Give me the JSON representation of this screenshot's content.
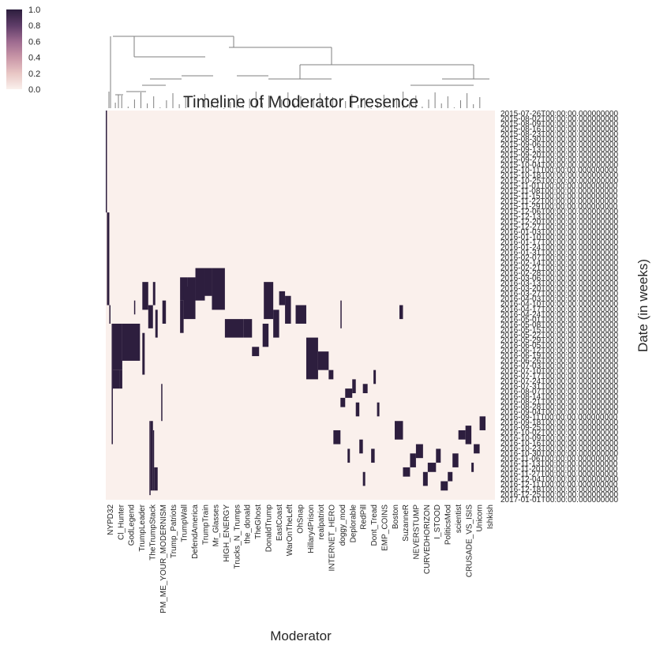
{
  "chart_data": {
    "type": "heatmap",
    "title": "Timeline of Moderator Presence",
    "xlabel": "Moderator",
    "ylabel": "Date (in weeks)",
    "colorbar": {
      "ticks": [
        "0.0",
        "0.2",
        "0.4",
        "0.6",
        "0.8",
        "1.0"
      ],
      "range": [
        0,
        1
      ]
    },
    "colors": {
      "low": "#faf0ec",
      "high": "#2d1e3e",
      "line": "#7f7f7f"
    },
    "dendrogram": "top",
    "legend_position": "top-left",
    "y_ticks": [
      "2015-07-26T00:00:00.000000000",
      "2015-08-02T00:00:00.000000000",
      "2015-08-09T00:00:00.000000000",
      "2015-08-16T00:00:00.000000000",
      "2015-08-23T00:00:00.000000000",
      "2015-08-30T00:00:00.000000000",
      "2015-09-06T00:00:00.000000000",
      "2015-09-13T00:00:00.000000000",
      "2015-09-20T00:00:00.000000000",
      "2015-09-27T00:00:00.000000000",
      "2015-10-04T00:00:00.000000000",
      "2015-10-11T00:00:00.000000000",
      "2015-10-18T00:00:00.000000000",
      "2015-10-25T00:00:00.000000000",
      "2015-11-01T00:00:00.000000000",
      "2015-11-08T00:00:00.000000000",
      "2015-11-15T00:00:00.000000000",
      "2015-11-22T00:00:00.000000000",
      "2015-11-29T00:00:00.000000000",
      "2015-12-06T00:00:00.000000000",
      "2015-12-13T00:00:00.000000000",
      "2015-12-20T00:00:00.000000000",
      "2015-12-27T00:00:00.000000000",
      "2016-01-03T00:00:00.000000000",
      "2016-01-10T00:00:00.000000000",
      "2016-01-17T00:00:00.000000000",
      "2016-01-24T00:00:00.000000000",
      "2016-01-31T00:00:00.000000000",
      "2016-02-07T00:00:00.000000000",
      "2016-02-14T00:00:00.000000000",
      "2016-02-21T00:00:00.000000000",
      "2016-02-28T00:00:00.000000000",
      "2016-03-06T00:00:00.000000000",
      "2016-03-13T00:00:00.000000000",
      "2016-03-20T00:00:00.000000000",
      "2016-03-27T00:00:00.000000000",
      "2016-04-03T00:00:00.000000000",
      "2016-04-10T00:00:00.000000000",
      "2016-04-17T00:00:00.000000000",
      "2016-04-24T00:00:00.000000000",
      "2016-05-01T00:00:00.000000000",
      "2016-05-08T00:00:00.000000000",
      "2016-05-15T00:00:00.000000000",
      "2016-05-22T00:00:00.000000000",
      "2016-05-29T00:00:00.000000000",
      "2016-06-05T00:00:00.000000000",
      "2016-06-12T00:00:00.000000000",
      "2016-06-19T00:00:00.000000000",
      "2016-06-26T00:00:00.000000000",
      "2016-07-03T00:00:00.000000000",
      "2016-07-10T00:00:00.000000000",
      "2016-07-17T00:00:00.000000000",
      "2016-07-24T00:00:00.000000000",
      "2016-07-31T00:00:00.000000000",
      "2016-08-07T00:00:00.000000000",
      "2016-08-14T00:00:00.000000000",
      "2016-08-21T00:00:00.000000000",
      "2016-08-28T00:00:00.000000000",
      "2016-09-04T00:00:00.000000000",
      "2016-09-11T00:00:00.000000000",
      "2016-09-18T00:00:00.000000000",
      "2016-09-25T00:00:00.000000000",
      "2016-10-02T00:00:00.000000000",
      "2016-10-09T00:00:00.000000000",
      "2016-10-16T00:00:00.000000000",
      "2016-10-23T00:00:00.000000000",
      "2016-10-30T00:00:00.000000000",
      "2016-11-06T00:00:00.000000000",
      "2016-11-13T00:00:00.000000000",
      "2016-11-20T00:00:00.000000000",
      "2016-11-27T00:00:00.000000000",
      "2016-12-04T00:00:00.000000000",
      "2016-12-11T00:00:00.000000000",
      "2016-12-18T00:00:00.000000000",
      "2016-12-25T00:00:00.000000000",
      "2017-01-01T00:00:00.000000000"
    ],
    "x_ticks": [
      "NYPD32",
      "Cl_Hunter",
      "GodLegend",
      "TrumpLeader",
      "TheTrumpStack",
      "PM_ME_YOUR_MODERNISM",
      "Trump_Patriots",
      "TrumpWall",
      "DefendAmerica",
      "TrumpTrain",
      "Mr_Glasses",
      "HIGH_ENERGY",
      "Trucks_N_Trumps",
      "the_donald",
      "TheGhost",
      "DonaldTrump",
      "EastCoast",
      "WarOnTheLeft",
      "OhSnap",
      "Hillary4Prison",
      "realpatriot",
      "INTERNET_HERO",
      "doggy_mod",
      "Deplorable",
      "RedPill",
      "Dont_Tread",
      "EMP_COINS",
      "Boston",
      "SuzanneR",
      "NEVERSTUMP",
      "CURVEDHORIZON",
      "I_STOOD",
      "PoliticsMod",
      "scientist",
      "CRUSADE_VS_ISIS",
      "Unicorn",
      "Ishkish"
    ],
    "cells": [
      {
        "cols": [
          0,
          1
        ],
        "rows": [
          0,
          22
        ]
      },
      {
        "cols": [
          1,
          3
        ],
        "rows": [
          22,
          42
        ]
      },
      {
        "cols": [
          3,
          4
        ],
        "rows": [
          42,
          46
        ]
      },
      {
        "cols": [
          5,
          6
        ],
        "rows": [
          46,
          72
        ]
      },
      {
        "cols": [
          6,
          14
        ],
        "rows": [
          46,
          56
        ]
      },
      {
        "cols": [
          14,
          29
        ],
        "rows": [
          46,
          54
        ]
      },
      {
        "cols": [
          6,
          12
        ],
        "rows": [
          56,
          60
        ]
      },
      {
        "cols": [
          12,
          14
        ],
        "rows": [
          56,
          60
        ]
      },
      {
        "cols": [
          24,
          25
        ],
        "rows": [
          41,
          44
        ]
      },
      {
        "cols": [
          37,
          38
        ],
        "rows": [
          67,
          83
        ]
      },
      {
        "cols": [
          38,
          40
        ],
        "rows": [
          67,
          82
        ]
      },
      {
        "cols": [
          40,
          41
        ],
        "rows": [
          69,
          82
        ]
      },
      {
        "cols": [
          41,
          44
        ],
        "rows": [
          77,
          82
        ]
      },
      {
        "cols": [
          31,
          33
        ],
        "rows": [
          48,
          57
        ]
      },
      {
        "cols": [
          31,
          36
        ],
        "rows": [
          37,
          43
        ]
      },
      {
        "cols": [
          36,
          40
        ],
        "rows": [
          42,
          47
        ]
      },
      {
        "cols": [
          40,
          42
        ],
        "rows": [
          37,
          42
        ]
      },
      {
        "cols": [
          42,
          44
        ],
        "rows": [
          43,
          49
        ]
      },
      {
        "cols": [
          47,
          48
        ],
        "rows": [
          59,
          67
        ]
      },
      {
        "cols": [
          48,
          51
        ],
        "rows": [
          41,
          46
        ]
      },
      {
        "cols": [
          63,
          69
        ],
        "rows": [
          36,
          41
        ]
      },
      {
        "cols": [
          69,
          76
        ],
        "rows": [
          36,
          41
        ]
      },
      {
        "cols": [
          63,
          66
        ],
        "rows": [
          41,
          48
        ]
      },
      {
        "cols": [
          66,
          76
        ],
        "rows": [
          38,
          45
        ]
      },
      {
        "cols": [
          76,
          84
        ],
        "rows": [
          34,
          41
        ]
      },
      {
        "cols": [
          84,
          90
        ],
        "rows": [
          34,
          40
        ]
      },
      {
        "cols": [
          90,
          101
        ],
        "rows": [
          34,
          43
        ]
      },
      {
        "cols": [
          101,
          117
        ],
        "rows": [
          45,
          49
        ]
      },
      {
        "cols": [
          117,
          124
        ],
        "rows": [
          45,
          49
        ]
      },
      {
        "cols": [
          124,
          130
        ],
        "rows": [
          51,
          53
        ]
      },
      {
        "cols": [
          133,
          138
        ],
        "rows": [
          46,
          51
        ]
      },
      {
        "cols": [
          134,
          142
        ],
        "rows": [
          37,
          45
        ]
      },
      {
        "cols": [
          142,
          147
        ],
        "rows": [
          43,
          49
        ]
      },
      {
        "cols": [
          147,
          152
        ],
        "rows": [
          39,
          42
        ]
      },
      {
        "cols": [
          152,
          157
        ],
        "rows": [
          40,
          46
        ]
      },
      {
        "cols": [
          199,
          200
        ],
        "rows": [
          41,
          47
        ]
      },
      {
        "cols": [
          161,
          170
        ],
        "rows": [
          42,
          46
        ]
      },
      {
        "cols": [
          170,
          180
        ],
        "rows": [
          49,
          58
        ]
      },
      {
        "cols": [
          180,
          189
        ],
        "rows": [
          52,
          56
        ]
      },
      {
        "cols": [
          189,
          193
        ],
        "rows": [
          56,
          58
        ]
      },
      {
        "cols": [
          193,
          199
        ],
        "rows": [
          69,
          72
        ]
      },
      {
        "cols": [
          199,
          203
        ],
        "rows": [
          62,
          64
        ]
      },
      {
        "cols": [
          203,
          209
        ],
        "rows": [
          60,
          62
        ]
      },
      {
        "cols": [
          205,
          207
        ],
        "rows": [
          73,
          76
        ]
      },
      {
        "cols": [
          209,
          212
        ],
        "rows": [
          58,
          61
        ]
      },
      {
        "cols": [
          212,
          215
        ],
        "rows": [
          63,
          66
        ]
      },
      {
        "cols": [
          215,
          218
        ],
        "rows": [
          71,
          74
        ]
      },
      {
        "cols": [
          218,
          222
        ],
        "rows": [
          59,
          61
        ]
      },
      {
        "cols": [
          218,
          220
        ],
        "rows": [
          78,
          81
        ]
      },
      {
        "cols": [
          225,
          228
        ],
        "rows": [
          73,
          76
        ]
      },
      {
        "cols": [
          230,
          232
        ],
        "rows": [
          63,
          66
        ]
      },
      {
        "cols": [
          227,
          229
        ],
        "rows": [
          56,
          59
        ]
      },
      {
        "cols": [
          245,
          252
        ],
        "rows": [
          67,
          71
        ]
      },
      {
        "cols": [
          249,
          252
        ],
        "rows": [
          42,
          45
        ]
      },
      {
        "cols": [
          252,
          258
        ],
        "rows": [
          77,
          79
        ]
      },
      {
        "cols": [
          258,
          263
        ],
        "rows": [
          74,
          77
        ]
      },
      {
        "cols": [
          263,
          269
        ],
        "rows": [
          72,
          75
        ]
      },
      {
        "cols": [
          269,
          273
        ],
        "rows": [
          78,
          81
        ]
      },
      {
        "cols": [
          273,
          280
        ],
        "rows": [
          76,
          78
        ]
      },
      {
        "cols": [
          280,
          284
        ],
        "rows": [
          73,
          76
        ]
      },
      {
        "cols": [
          284,
          290
        ],
        "rows": [
          80,
          82
        ]
      },
      {
        "cols": [
          290,
          294
        ],
        "rows": [
          78,
          80
        ]
      },
      {
        "cols": [
          294,
          299
        ],
        "rows": [
          74,
          77
        ]
      },
      {
        "cols": [
          299,
          305
        ],
        "rows": [
          69,
          71
        ]
      },
      {
        "cols": [
          305,
          310
        ],
        "rows": [
          68,
          72
        ]
      },
      {
        "cols": [
          310,
          312
        ],
        "rows": [
          76,
          78
        ]
      },
      {
        "cols": [
          312,
          317
        ],
        "rows": [
          72,
          74
        ]
      },
      {
        "cols": [
          317,
          322
        ],
        "rows": [
          66,
          69
        ]
      }
    ]
  }
}
